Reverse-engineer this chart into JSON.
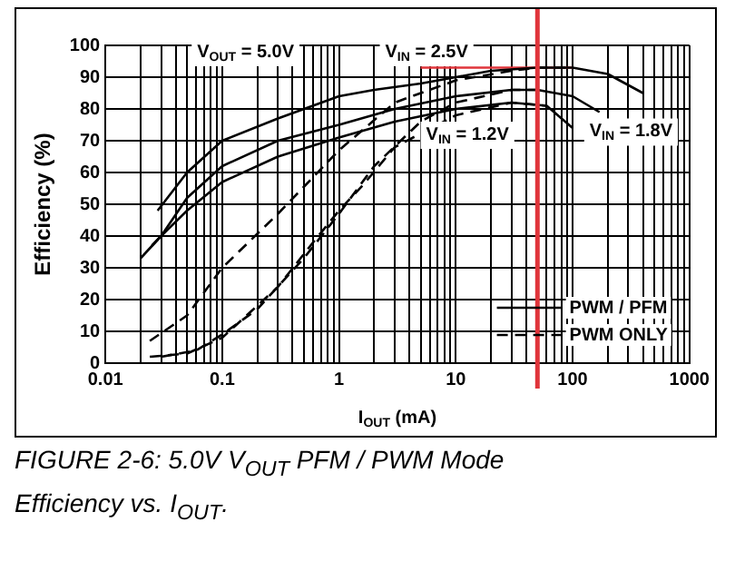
{
  "chart_data": {
    "type": "line",
    "xlabel": "I$_{OUT}$ (mA)",
    "ylabel": "Efficiency (%)",
    "log": "x",
    "xlim": [
      0.01,
      1000
    ],
    "ylim": [
      0,
      100
    ],
    "xticks": [
      0.01,
      {
        "value": 0.02,
        "label": null
      },
      {
        "value": 0.03,
        "label": null
      },
      {
        "value": 0.04,
        "label": null
      },
      {
        "value": 0.05,
        "label": null
      },
      {
        "value": 0.06,
        "label": null
      },
      {
        "value": 0.07,
        "label": null
      },
      {
        "value": 0.08,
        "label": null
      },
      {
        "value": 0.09,
        "label": null
      },
      0.1,
      {
        "value": 0.2,
        "label": null
      },
      {
        "value": 0.3,
        "label": null
      },
      {
        "value": 0.4,
        "label": null
      },
      {
        "value": 0.5,
        "label": null
      },
      {
        "value": 0.6,
        "label": null
      },
      {
        "value": 0.7,
        "label": null
      },
      {
        "value": 0.8,
        "label": null
      },
      {
        "value": 0.9,
        "label": null
      },
      1,
      {
        "value": 2,
        "label": null
      },
      {
        "value": 3,
        "label": null
      },
      {
        "value": 4,
        "label": null
      },
      {
        "value": 5,
        "label": null
      },
      {
        "value": 6,
        "label": null
      },
      {
        "value": 7,
        "label": null
      },
      {
        "value": 8,
        "label": null
      },
      {
        "value": 9,
        "label": null
      },
      10,
      {
        "value": 20,
        "label": null
      },
      {
        "value": 30,
        "label": null
      },
      {
        "value": 40,
        "label": null
      },
      {
        "value": 50,
        "label": null
      },
      {
        "value": 60,
        "label": null
      },
      {
        "value": 70,
        "label": null
      },
      {
        "value": 80,
        "label": null
      },
      {
        "value": 90,
        "label": null
      },
      100,
      {
        "value": 200,
        "label": null
      },
      {
        "value": 300,
        "label": null
      },
      {
        "value": 400,
        "label": null
      },
      {
        "value": 500,
        "label": null
      },
      {
        "value": 600,
        "label": null
      },
      {
        "value": 700,
        "label": null
      },
      {
        "value": 800,
        "label": null
      },
      {
        "value": 900,
        "label": null
      },
      1000
    ],
    "yticks": [
      0,
      10,
      20,
      30,
      40,
      50,
      60,
      70,
      80,
      90,
      100
    ],
    "grid": true,
    "legend": "bottom right",
    "marker": "none",
    "series": [
      {
        "name": "PWM / PFM",
        "color": "#000000",
        "line_style": "solid",
        "x": [
          0.028,
          0.05,
          0.1,
          0.3,
          1,
          2,
          5,
          10,
          20,
          50,
          100,
          200,
          400
        ],
        "values": [
          48,
          60,
          70,
          77,
          84,
          86,
          88,
          90,
          92,
          93,
          93,
          91,
          85
        ]
      },
      {
        "color": "#000000",
        "line_style": "solid",
        "x": [
          0.02,
          0.03,
          0.05,
          0.1,
          0.3,
          1,
          3,
          10,
          30,
          50,
          100,
          170
        ],
        "values": [
          33,
          40,
          52,
          62,
          70,
          75,
          80,
          84,
          86,
          86,
          84,
          79
        ]
      },
      {
        "color": "#000000",
        "line_style": "solid",
        "x": [
          0.025,
          0.03,
          0.05,
          0.1,
          0.3,
          1,
          3,
          10,
          30,
          60,
          100
        ],
        "values": [
          37,
          40,
          48,
          57,
          65,
          71,
          76,
          80,
          82,
          81,
          74
        ]
      },
      {
        "name": "PWM ONLY",
        "color": "#000000",
        "line_style": "dashed",
        "x": [
          0.024,
          0.05,
          0.1,
          0.3,
          1,
          3,
          10,
          30,
          50,
          100
        ],
        "values": [
          7,
          15,
          30,
          47,
          67,
          82,
          89,
          92,
          93,
          93
        ]
      },
      {
        "color": "#000000",
        "line_style": "dashed",
        "x": [
          0.03,
          0.06,
          0.1,
          0.2,
          0.5,
          1,
          2,
          5,
          10,
          30,
          50
        ],
        "values": [
          2,
          4,
          9,
          17,
          33,
          47,
          62,
          76,
          82,
          86,
          86
        ]
      },
      {
        "color": "#000000",
        "line_style": "dashed",
        "x": [
          0.024,
          0.05,
          0.1,
          0.3,
          0.6,
          1,
          1.6,
          3,
          10,
          30,
          60
        ],
        "values": [
          2,
          3,
          8,
          24,
          38,
          48,
          56,
          68,
          78,
          82,
          81
        ]
      },
      {
        "color": "#e0353b",
        "line_style": "solid",
        "x": [
          5,
          100
        ],
        "values": [
          93,
          93
        ]
      }
    ],
    "ref_lines": [
      {
        "axis": "x",
        "value": 50,
        "color": "#e0353b"
      }
    ],
    "annotations": [
      "V$_{OUT}$ = 5.0V",
      "V$_{IN}$ = 2.5V",
      "V$_{IN}$ = 1.2V",
      "V$_{IN}$ = 1.8V",
      "FIGURE 2-6: 5.0V V$_{OUT}$ PFM / PWM Mode Efficiency vs. I$_{OUT}$."
    ]
  }
}
